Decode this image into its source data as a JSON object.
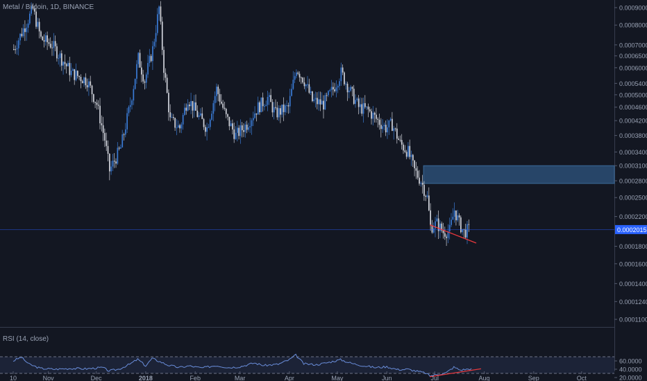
{
  "chart_data": [
    {
      "type": "candlestick",
      "title": "Metal / Bitcoin, 1D, BINANCE",
      "y_axis": {
        "scale": "log",
        "ticks": [
          "0.0009000",
          "0.0008000",
          "0.0007000",
          "0.0006500",
          "0.0006000",
          "0.0005400",
          "0.0005000",
          "0.0004600",
          "0.0004200",
          "0.0003800",
          "0.0003400",
          "0.0003100",
          "0.0002800",
          "0.0002500",
          "0.0002200",
          "0.0002015",
          "0.0001800",
          "0.0001600",
          "0.0001400",
          "0.0001240",
          "0.0001100"
        ]
      },
      "x_axis": {
        "ticks": [
          "10",
          "Nov",
          "Dec",
          "2018",
          "Feb",
          "Mar",
          "Apr",
          "May",
          "Jun",
          "Jul",
          "Aug",
          "Sep",
          "Oct"
        ]
      },
      "last_price": "0.0002015",
      "close_path": [
        [
          "Oct 10",
          0.00068
        ],
        [
          "Oct 22",
          0.00089
        ],
        [
          "Oct 27",
          0.00073
        ],
        [
          "Nov 3",
          0.0007
        ],
        [
          "Nov 15",
          0.00058
        ],
        [
          "Nov 25",
          0.00055
        ],
        [
          "Dec 1",
          0.00047
        ],
        [
          "Dec 6",
          0.00037
        ],
        [
          "Dec 9",
          0.0003
        ],
        [
          "Dec 16",
          0.00035
        ],
        [
          "Dec 22",
          0.00047
        ],
        [
          "Dec 27",
          0.00064
        ],
        [
          "Dec 31",
          0.00055
        ],
        [
          "Jan 5",
          0.00068
        ],
        [
          "Jan 9",
          0.0009
        ],
        [
          "Jan 12",
          0.0006
        ],
        [
          "Jan 16",
          0.00042
        ],
        [
          "Jan 22",
          0.0004
        ],
        [
          "Jan 27",
          0.00049
        ],
        [
          "Feb 3",
          0.00043
        ],
        [
          "Feb 8",
          0.0004
        ],
        [
          "Feb 14",
          0.00052
        ],
        [
          "Feb 20",
          0.00043
        ],
        [
          "Feb 26",
          0.00038
        ],
        [
          "Mar 5",
          0.00041
        ],
        [
          "Mar 12",
          0.00046
        ],
        [
          "Mar 18",
          0.00049
        ],
        [
          "Mar 23",
          0.00044
        ],
        [
          "Mar 31",
          0.00046
        ],
        [
          "Apr 5",
          0.0006
        ],
        [
          "Apr 10",
          0.00055
        ],
        [
          "Apr 15",
          0.00048
        ],
        [
          "Apr 22",
          0.00047
        ],
        [
          "Apr 28",
          0.00052
        ],
        [
          "May 3",
          0.00058
        ],
        [
          "May 9",
          0.00051
        ],
        [
          "May 14",
          0.00046
        ],
        [
          "May 20",
          0.00045
        ],
        [
          "May 26",
          0.00042
        ],
        [
          "May 31",
          0.0004
        ],
        [
          "Jun 4",
          0.00041
        ],
        [
          "Jun 9",
          0.00036
        ],
        [
          "Jun 14",
          0.00034
        ],
        [
          "Jun 18",
          0.0003
        ],
        [
          "Jun 22",
          0.00028
        ],
        [
          "Jun 26",
          0.00025
        ],
        [
          "Jun 28",
          0.000205
        ],
        [
          "Jul 2",
          0.00021
        ],
        [
          "Jul 6",
          0.000198
        ],
        [
          "Jul 10",
          0.0002
        ],
        [
          "Jul 13",
          0.00023
        ],
        [
          "Jul 16",
          0.00021
        ],
        [
          "Jul 19",
          0.000198
        ],
        [
          "Jul 22",
          0.0002015
        ]
      ],
      "zone": {
        "from": "Jun 24",
        "low": 0.000275,
        "high": 0.00031
      },
      "trendline": {
        "from": [
          "Jun 28",
          0.000208
        ],
        "to": [
          "Jul 27",
          0.000184
        ]
      },
      "grid": false
    },
    {
      "type": "line",
      "title": "RSI (14, close)",
      "y_axis": {
        "ticks": [
          "60.0000",
          "40.0000",
          "20.0000"
        ]
      },
      "levels": [
        70,
        30
      ],
      "series": [
        {
          "values": [
            [
              "Oct 10",
              60
            ],
            [
              "Oct 15",
              69
            ],
            [
              "Oct 20",
              52
            ],
            [
              "Oct 27",
              42
            ],
            [
              "Nov 5",
              40
            ],
            [
              "Nov 15",
              42
            ],
            [
              "Nov 25",
              41
            ],
            [
              "Dec 5",
              44
            ],
            [
              "Dec 9",
              36
            ],
            [
              "Dec 15",
              40
            ],
            [
              "Dec 22",
              52
            ],
            [
              "Dec 27",
              64
            ],
            [
              "Jan 1",
              48
            ],
            [
              "Jan 5",
              66
            ],
            [
              "Jan 10",
              58
            ],
            [
              "Jan 15",
              50
            ],
            [
              "Jan 22",
              44
            ],
            [
              "Jan 28",
              48
            ],
            [
              "Feb 5",
              43
            ],
            [
              "Feb 14",
              49
            ],
            [
              "Feb 22",
              44
            ],
            [
              "Mar 1",
              46
            ],
            [
              "Mar 10",
              55
            ],
            [
              "Mar 16",
              49
            ],
            [
              "Mar 25",
              52
            ],
            [
              "Apr 1",
              63
            ],
            [
              "Apr 5",
              74
            ],
            [
              "Apr 10",
              53
            ],
            [
              "Apr 18",
              51
            ],
            [
              "Apr 25",
              56
            ],
            [
              "May 3",
              63
            ],
            [
              "May 10",
              54
            ],
            [
              "May 18",
              48
            ],
            [
              "May 25",
              44
            ],
            [
              "Jun 1",
              46
            ],
            [
              "Jun 8",
              39
            ],
            [
              "Jun 14",
              40
            ],
            [
              "Jun 20",
              35
            ],
            [
              "Jun 25",
              31
            ],
            [
              "Jun 28",
              24
            ],
            [
              "Jul 3",
              28
            ],
            [
              "Jul 8",
              31
            ],
            [
              "Jul 13",
              45
            ],
            [
              "Jul 17",
              38
            ],
            [
              "Jul 21",
              40
            ],
            [
              "Jul 24",
              41
            ]
          ]
        }
      ],
      "trendline": {
        "from": [
          "Jun 28",
          22
        ],
        "to": [
          "Jul 30",
          41
        ]
      }
    }
  ],
  "colors": {
    "background": "#131722",
    "rsi_fill": "#1c2337",
    "candle": "#3a7bd5",
    "candle_down": "#d1d4dc",
    "rsi_line": "#6a8edb",
    "trendline": "#e8383d",
    "zone": "#2c4e74",
    "axis_text": "#9aa3b5",
    "price_label": "#2962ff"
  }
}
